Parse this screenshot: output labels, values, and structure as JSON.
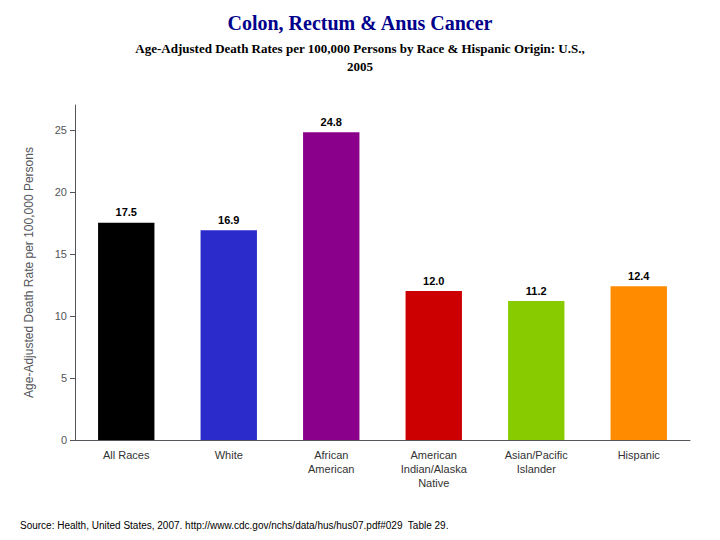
{
  "chart_data": {
    "type": "bar",
    "title": "Colon, Rectum & Anus Cancer",
    "subtitle": "Age-Adjusted Death Rates per 100,000 Persons by Race & Hispanic Origin: U.S.,\n2005",
    "ylabel": "Age-Adjusted Death Rate per 100,000 Persons",
    "categories": [
      "All Races",
      "White",
      "African\nAmerican",
      "American\nIndian/Alaska\nNative",
      "Asian/Pacific\nIslander",
      "Hispanic"
    ],
    "values": [
      17.5,
      16.9,
      24.8,
      12.0,
      11.2,
      12.4
    ],
    "value_labels": [
      "17.5",
      "16.9",
      "24.8",
      "12.0",
      "11.2",
      "12.4"
    ],
    "colors": [
      "#000000",
      "#2B2BCC",
      "#8B008B",
      "#CC0000",
      "#88CC00",
      "#FF8C00"
    ],
    "ylim": [
      0,
      27
    ],
    "yticks": [
      0,
      5,
      10,
      15,
      20,
      25
    ],
    "grid": false,
    "data_labels": true,
    "annotations": [
      "Source: Health, United States, 2007. http://www.cdc.gov/nchs/data/hus/hus07.pdf#029  Table 29."
    ]
  }
}
